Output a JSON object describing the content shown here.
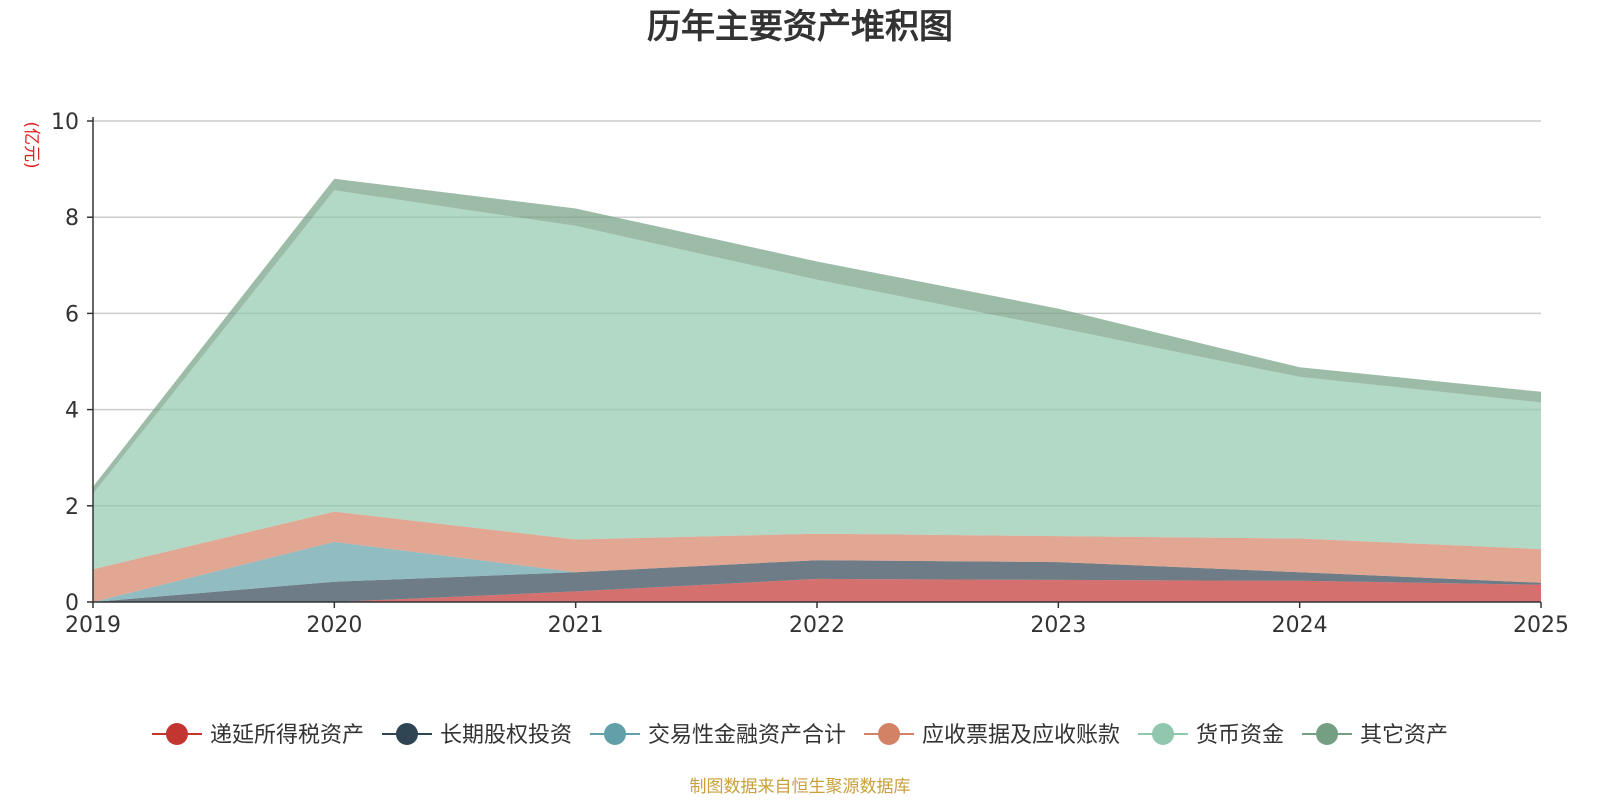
{
  "chart_data": {
    "type": "area",
    "stacked": true,
    "title": "历年主要资产堆积图",
    "ylabel": "(亿元)",
    "xlabel": "",
    "categories": [
      "2019",
      "2020",
      "2021",
      "2022",
      "2023",
      "2024",
      "2025"
    ],
    "ylim": [
      0,
      10
    ],
    "yticks": [
      0,
      2,
      4,
      6,
      8,
      10
    ],
    "grid": true,
    "legend_position": "bottom",
    "series": [
      {
        "name": "递延所得税资产",
        "color": "#c23531",
        "values": [
          0.0,
          0.0,
          0.22,
          0.48,
          0.46,
          0.44,
          0.36
        ]
      },
      {
        "name": "长期股权投资",
        "color": "#2f4554",
        "values": [
          0.0,
          0.42,
          0.4,
          0.39,
          0.37,
          0.18,
          0.04
        ]
      },
      {
        "name": "交易性金融资产合计",
        "color": "#61a0a8",
        "values": [
          0.0,
          0.83,
          0.0,
          0.0,
          0.0,
          0.0,
          0.0
        ]
      },
      {
        "name": "应收票据及应收账款",
        "color": "#d48265",
        "values": [
          0.68,
          0.63,
          0.68,
          0.55,
          0.54,
          0.7,
          0.7
        ]
      },
      {
        "name": "货币资金",
        "color": "#91c7ae",
        "values": [
          1.57,
          6.68,
          6.52,
          5.28,
          4.33,
          3.36,
          3.05
        ]
      },
      {
        "name": "其它资产",
        "color": "#749f83",
        "values": [
          0.15,
          0.24,
          0.36,
          0.38,
          0.4,
          0.2,
          0.22
        ]
      }
    ],
    "source": "制图数据来自恒生聚源数据库"
  }
}
